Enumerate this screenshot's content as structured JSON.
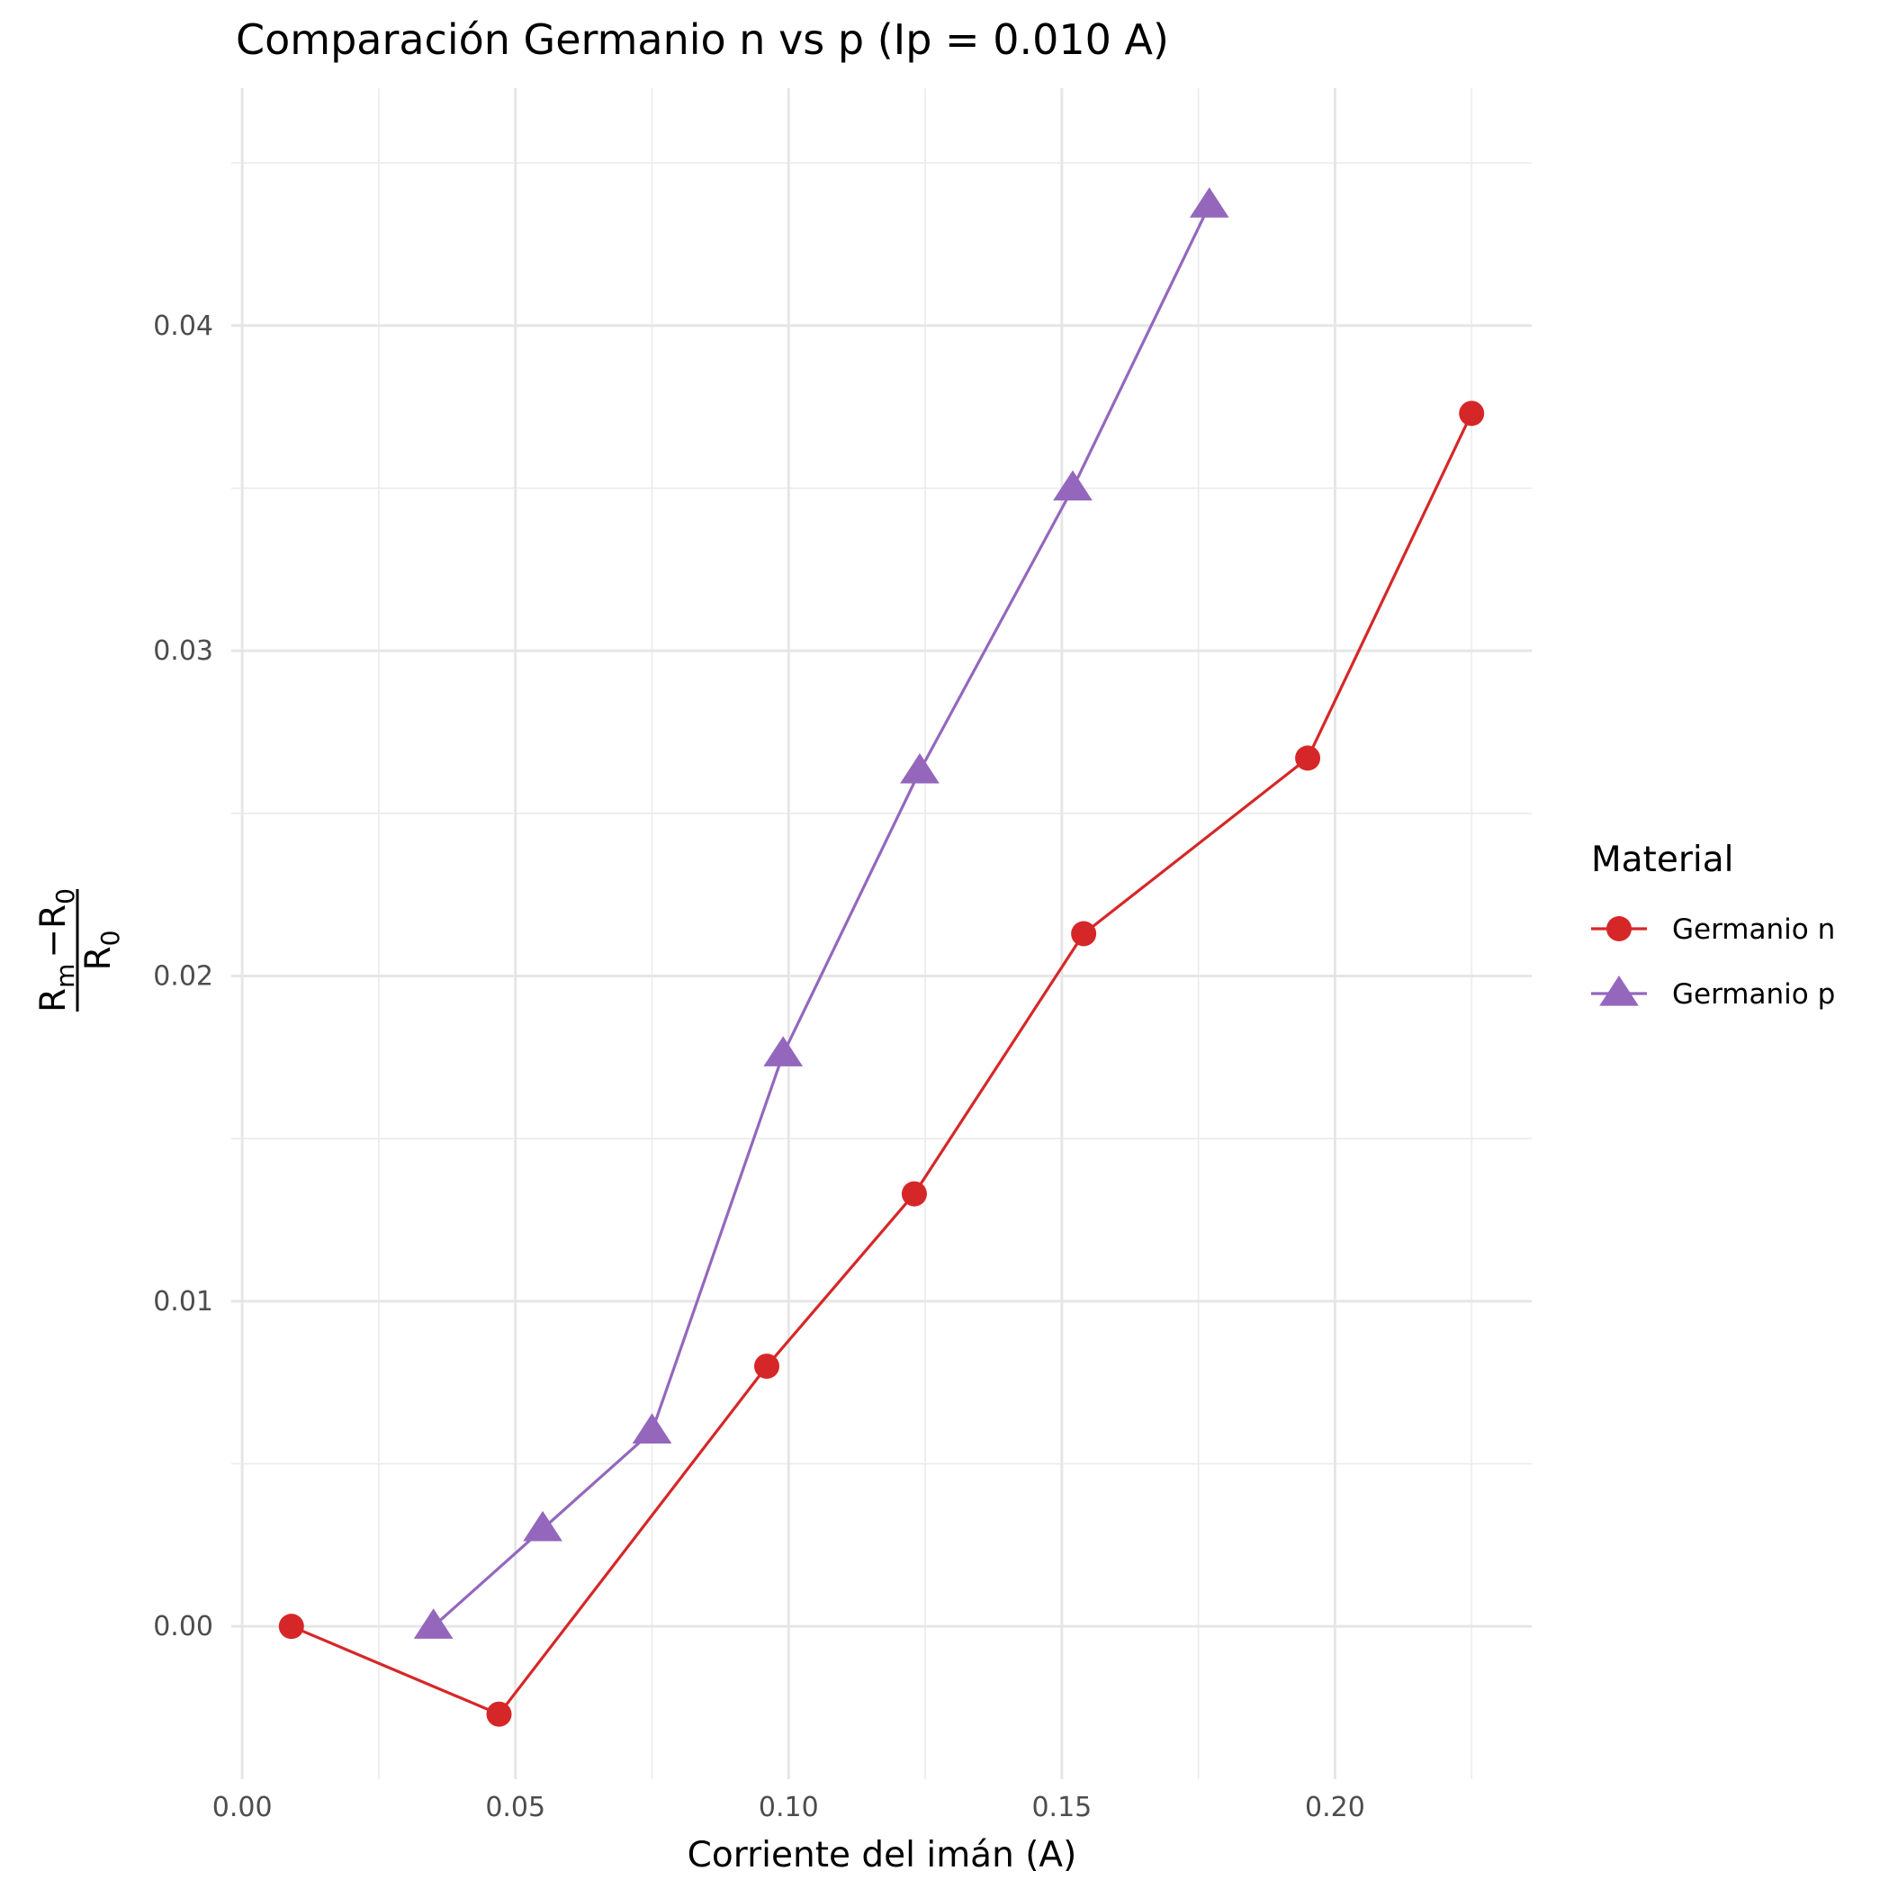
{
  "chart_data": {
    "type": "line",
    "title": "Comparación Germanio n vs p (Ip = 0.010 A)",
    "xlabel": "Corriente del imán (A)",
    "ylabel": {
      "numerator_main_a": "R",
      "numerator_sub_a": "m",
      "numerator_op": "−",
      "numerator_main_b": "R",
      "numerator_sub_b": "0",
      "denominator_main": "R",
      "denominator_sub": "0"
    },
    "xlim": [
      -0.002,
      0.236
    ],
    "ylim": [
      -0.0047,
      0.0473
    ],
    "x_ticks": [
      0.0,
      0.05,
      0.1,
      0.15,
      0.2
    ],
    "x_tick_labels": [
      "0.00",
      "0.05",
      "0.10",
      "0.15",
      "0.20"
    ],
    "y_ticks": [
      0.0,
      0.01,
      0.02,
      0.03,
      0.04
    ],
    "y_tick_labels": [
      "0.00",
      "0.01",
      "0.02",
      "0.03",
      "0.04"
    ],
    "grid": true,
    "legend": {
      "title": "Material",
      "position": "right"
    },
    "series": [
      {
        "name": "Germanio n",
        "color": "#D62728",
        "marker": "circle",
        "x": [
          0.009,
          0.047,
          0.096,
          0.123,
          0.154,
          0.195,
          0.225
        ],
        "y": [
          0.0,
          -0.0027,
          0.008,
          0.0133,
          0.0213,
          0.0267,
          0.0373
        ]
      },
      {
        "name": "Germanio p",
        "color": "#9467BD",
        "marker": "triangle",
        "x": [
          0.035,
          0.055,
          0.075,
          0.099,
          0.124,
          0.152,
          0.177
        ],
        "y": [
          0.0,
          0.003,
          0.006,
          0.0176,
          0.0263,
          0.035,
          0.0437
        ]
      }
    ]
  }
}
